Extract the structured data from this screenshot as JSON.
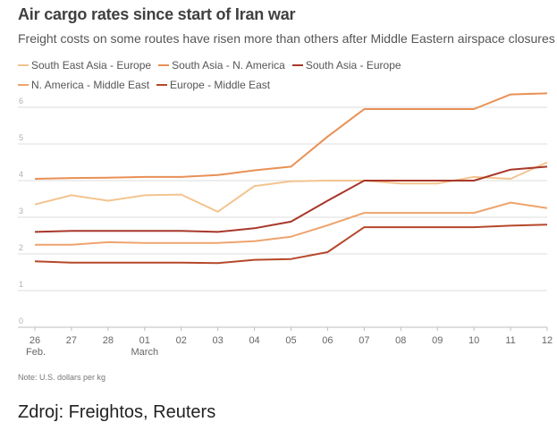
{
  "title": "Air cargo rates since start of Iran war",
  "subtitle": "Freight costs on some routes have risen more than others after Middle Eastern airspace closures",
  "note": "Note: U.S. dollars per kg",
  "source": "Zdroj: Freightos, Reuters",
  "chart_data": {
    "type": "line",
    "title": "Air cargo rates since start of Iran war",
    "ylabel": "",
    "xlabel": "",
    "ylim": [
      0,
      6
    ],
    "yticks": [
      "0",
      "1",
      "2",
      "3",
      "4",
      "5",
      "6"
    ],
    "categories": [
      "26",
      "27",
      "28",
      "01",
      "02",
      "03",
      "04",
      "05",
      "06",
      "07",
      "08",
      "09",
      "10",
      "11",
      "12"
    ],
    "category_sublabels": [
      "Feb.",
      "",
      "",
      "March",
      "",
      "",
      "",
      "",
      "",
      "",
      "",
      "",
      "",
      "",
      ""
    ],
    "grid": true,
    "legend_position": "top",
    "series": [
      {
        "name": "South East Asia - Europe",
        "color": "#f3c48f",
        "values": [
          3.35,
          3.6,
          3.45,
          3.6,
          3.62,
          3.15,
          3.85,
          3.98,
          4.0,
          4.0,
          3.92,
          3.92,
          4.1,
          4.05,
          4.5
        ]
      },
      {
        "name": "South Asia - N. America",
        "color": "#e99055",
        "values": [
          4.05,
          4.07,
          4.08,
          4.1,
          4.1,
          4.15,
          4.28,
          4.38,
          5.2,
          5.95,
          5.95,
          5.95,
          5.95,
          6.35,
          6.38
        ]
      },
      {
        "name": "South Asia - Europe",
        "color": "#a8372a",
        "values": [
          2.6,
          2.63,
          2.63,
          2.63,
          2.63,
          2.6,
          2.7,
          2.88,
          3.45,
          4.0,
          4.0,
          4.0,
          4.0,
          4.3,
          4.38
        ]
      },
      {
        "name": "N. America - Middle East",
        "color": "#eea46e",
        "values": [
          2.25,
          2.25,
          2.32,
          2.3,
          2.3,
          2.3,
          2.35,
          2.47,
          2.78,
          3.12,
          3.12,
          3.12,
          3.12,
          3.4,
          3.25
        ]
      },
      {
        "name": "Europe - Middle East",
        "color": "#b5482a",
        "values": [
          1.8,
          1.76,
          1.76,
          1.76,
          1.76,
          1.75,
          1.84,
          1.86,
          2.05,
          2.73,
          2.73,
          2.73,
          2.73,
          2.77,
          2.8
        ]
      }
    ]
  }
}
